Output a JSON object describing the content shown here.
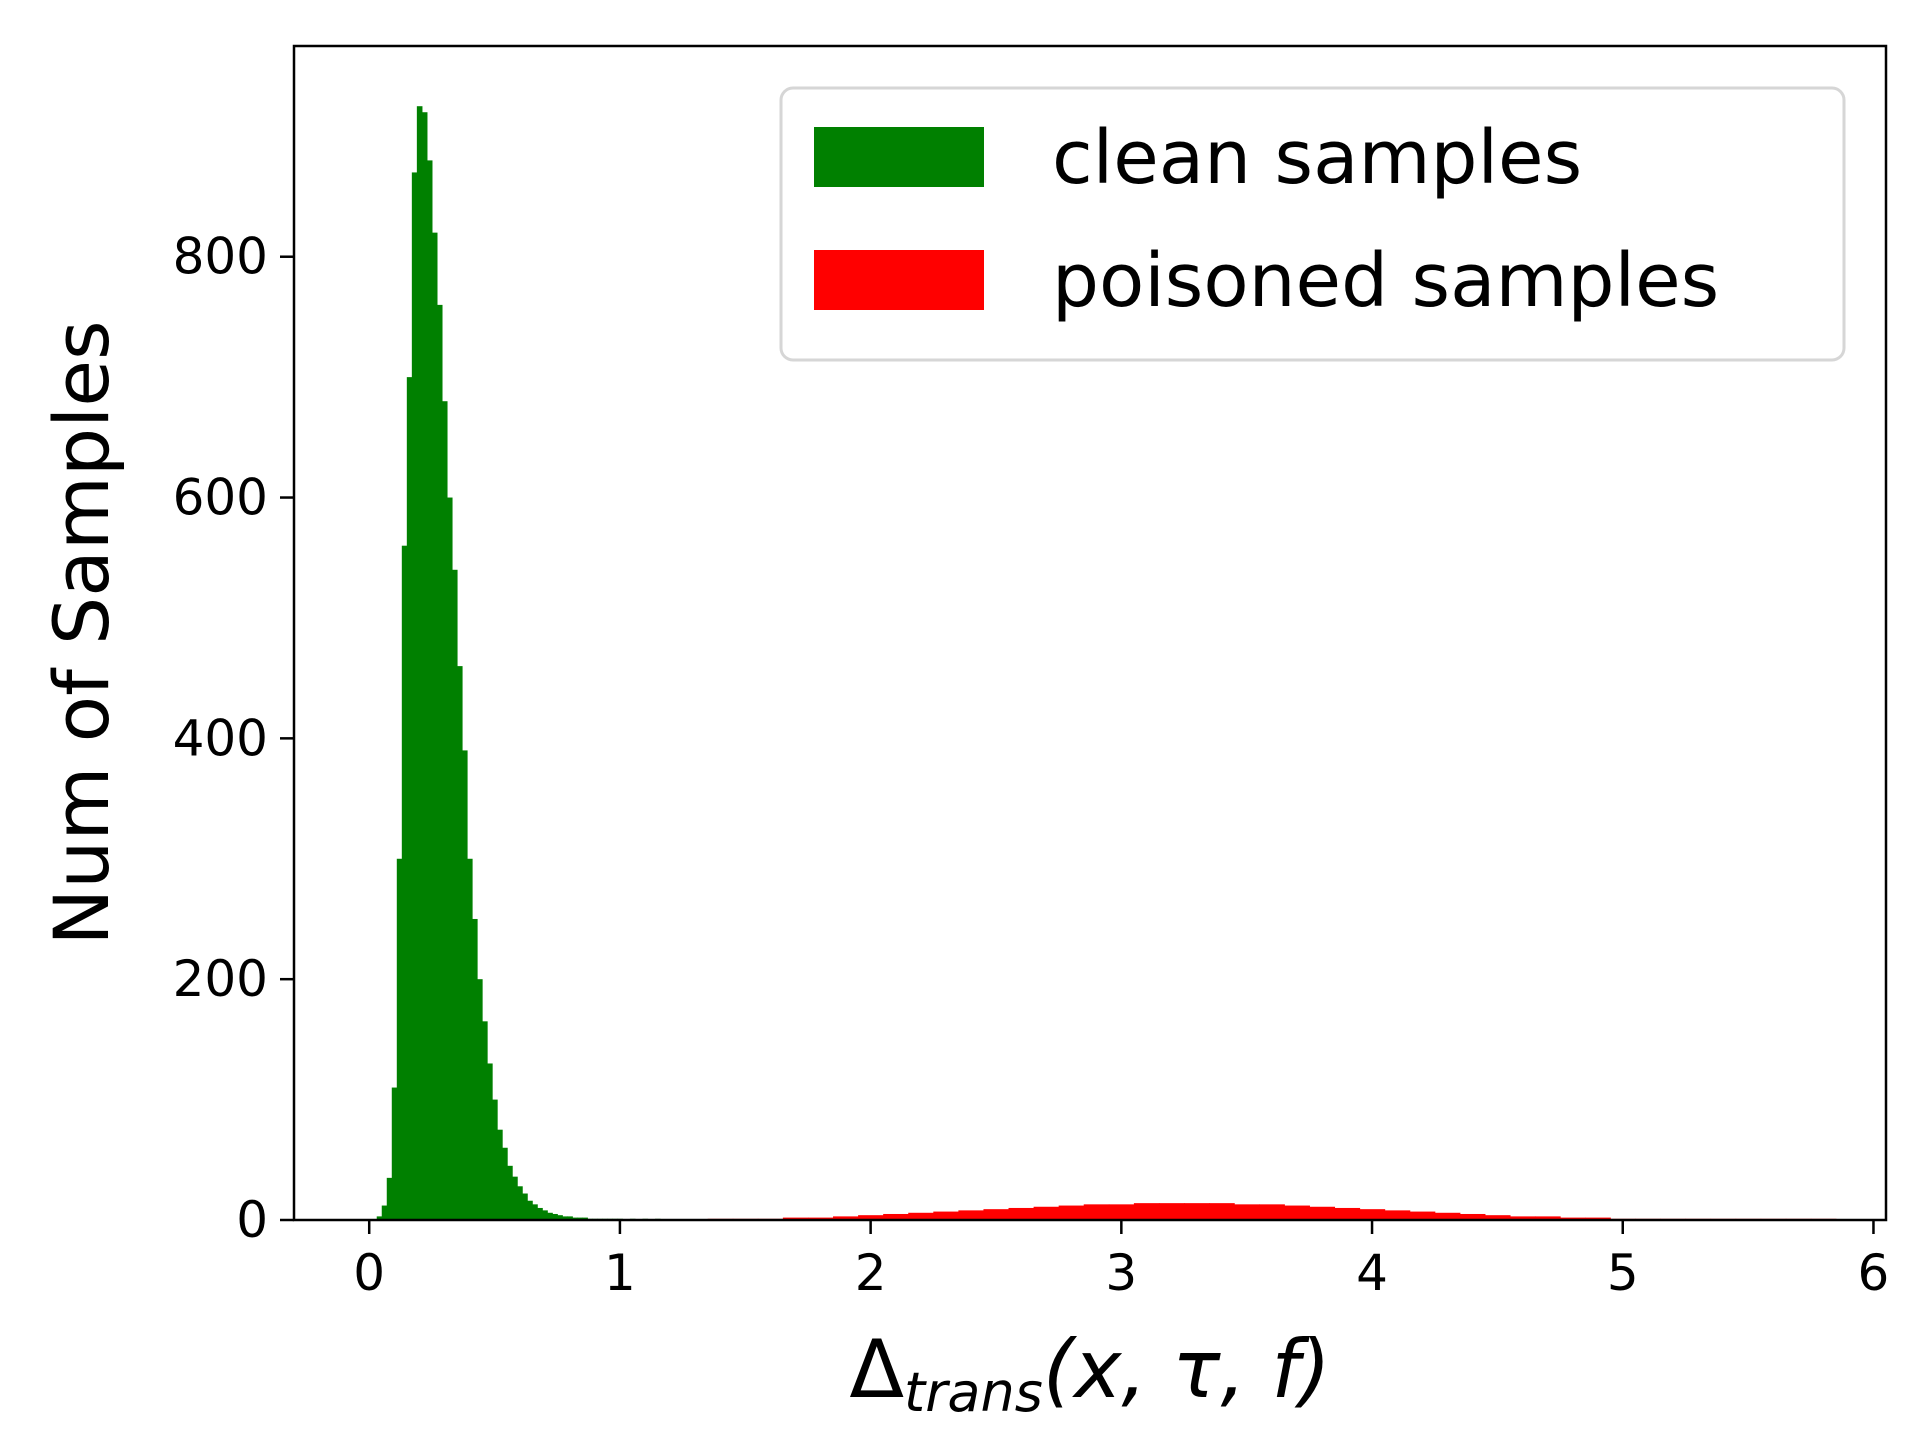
{
  "chart_data": {
    "type": "bar",
    "xlabel": {
      "main": "Δ",
      "sub": "trans",
      "rest": "(x, τ, f)"
    },
    "ylabel": "Num of Samples",
    "xlim": [
      -0.3,
      6.05
    ],
    "ylim": [
      0,
      975
    ],
    "xticks": [
      0,
      1,
      2,
      3,
      4,
      5,
      6
    ],
    "yticks": [
      0,
      200,
      400,
      600,
      800
    ],
    "grid": false,
    "legend_position": "top-right",
    "series": [
      {
        "name": "clean samples",
        "color": "#008000",
        "x": [
          0.04,
          0.06,
          0.08,
          0.1,
          0.12,
          0.14,
          0.16,
          0.18,
          0.2,
          0.22,
          0.24,
          0.26,
          0.28,
          0.3,
          0.32,
          0.34,
          0.36,
          0.38,
          0.4,
          0.42,
          0.44,
          0.46,
          0.48,
          0.5,
          0.52,
          0.54,
          0.56,
          0.58,
          0.6,
          0.62,
          0.64,
          0.66,
          0.68,
          0.7,
          0.72,
          0.74,
          0.76,
          0.78,
          0.8,
          0.82,
          0.84,
          0.86,
          0.88,
          0.9,
          0.92,
          0.94,
          0.96,
          0.98,
          1.0,
          1.05,
          1.1,
          1.15,
          1.2,
          1.25,
          1.3
        ],
        "values": [
          3,
          12,
          35,
          110,
          300,
          560,
          700,
          870,
          925,
          920,
          880,
          820,
          760,
          680,
          600,
          540,
          460,
          390,
          300,
          250,
          200,
          165,
          130,
          100,
          75,
          60,
          45,
          36,
          28,
          22,
          16,
          13,
          10,
          8,
          6,
          5,
          4,
          3,
          3,
          2,
          2,
          2,
          1,
          1,
          1,
          1,
          1,
          1,
          1,
          1,
          1,
          1,
          0,
          0,
          0
        ]
      },
      {
        "name": "poisoned samples",
        "color": "#ff0000",
        "x": [
          1.4,
          1.5,
          1.6,
          1.7,
          1.8,
          1.9,
          2.0,
          2.1,
          2.2,
          2.3,
          2.4,
          2.5,
          2.6,
          2.7,
          2.8,
          2.9,
          3.0,
          3.1,
          3.2,
          3.3,
          3.4,
          3.5,
          3.6,
          3.7,
          3.8,
          3.9,
          4.0,
          4.1,
          4.2,
          4.3,
          4.4,
          4.5,
          4.6,
          4.7,
          4.8,
          4.9,
          5.0,
          5.1,
          5.2,
          5.3,
          5.4,
          5.5,
          5.6,
          5.7,
          5.8
        ],
        "values": [
          1,
          1,
          1,
          2,
          2,
          3,
          4,
          5,
          6,
          7,
          8,
          9,
          10,
          11,
          12,
          13,
          13,
          14,
          14,
          14,
          14,
          13,
          13,
          12,
          11,
          10,
          9,
          8,
          7,
          6,
          5,
          4,
          3,
          3,
          2,
          2,
          1,
          1,
          1,
          1,
          1,
          1,
          1,
          1,
          1
        ]
      }
    ]
  }
}
